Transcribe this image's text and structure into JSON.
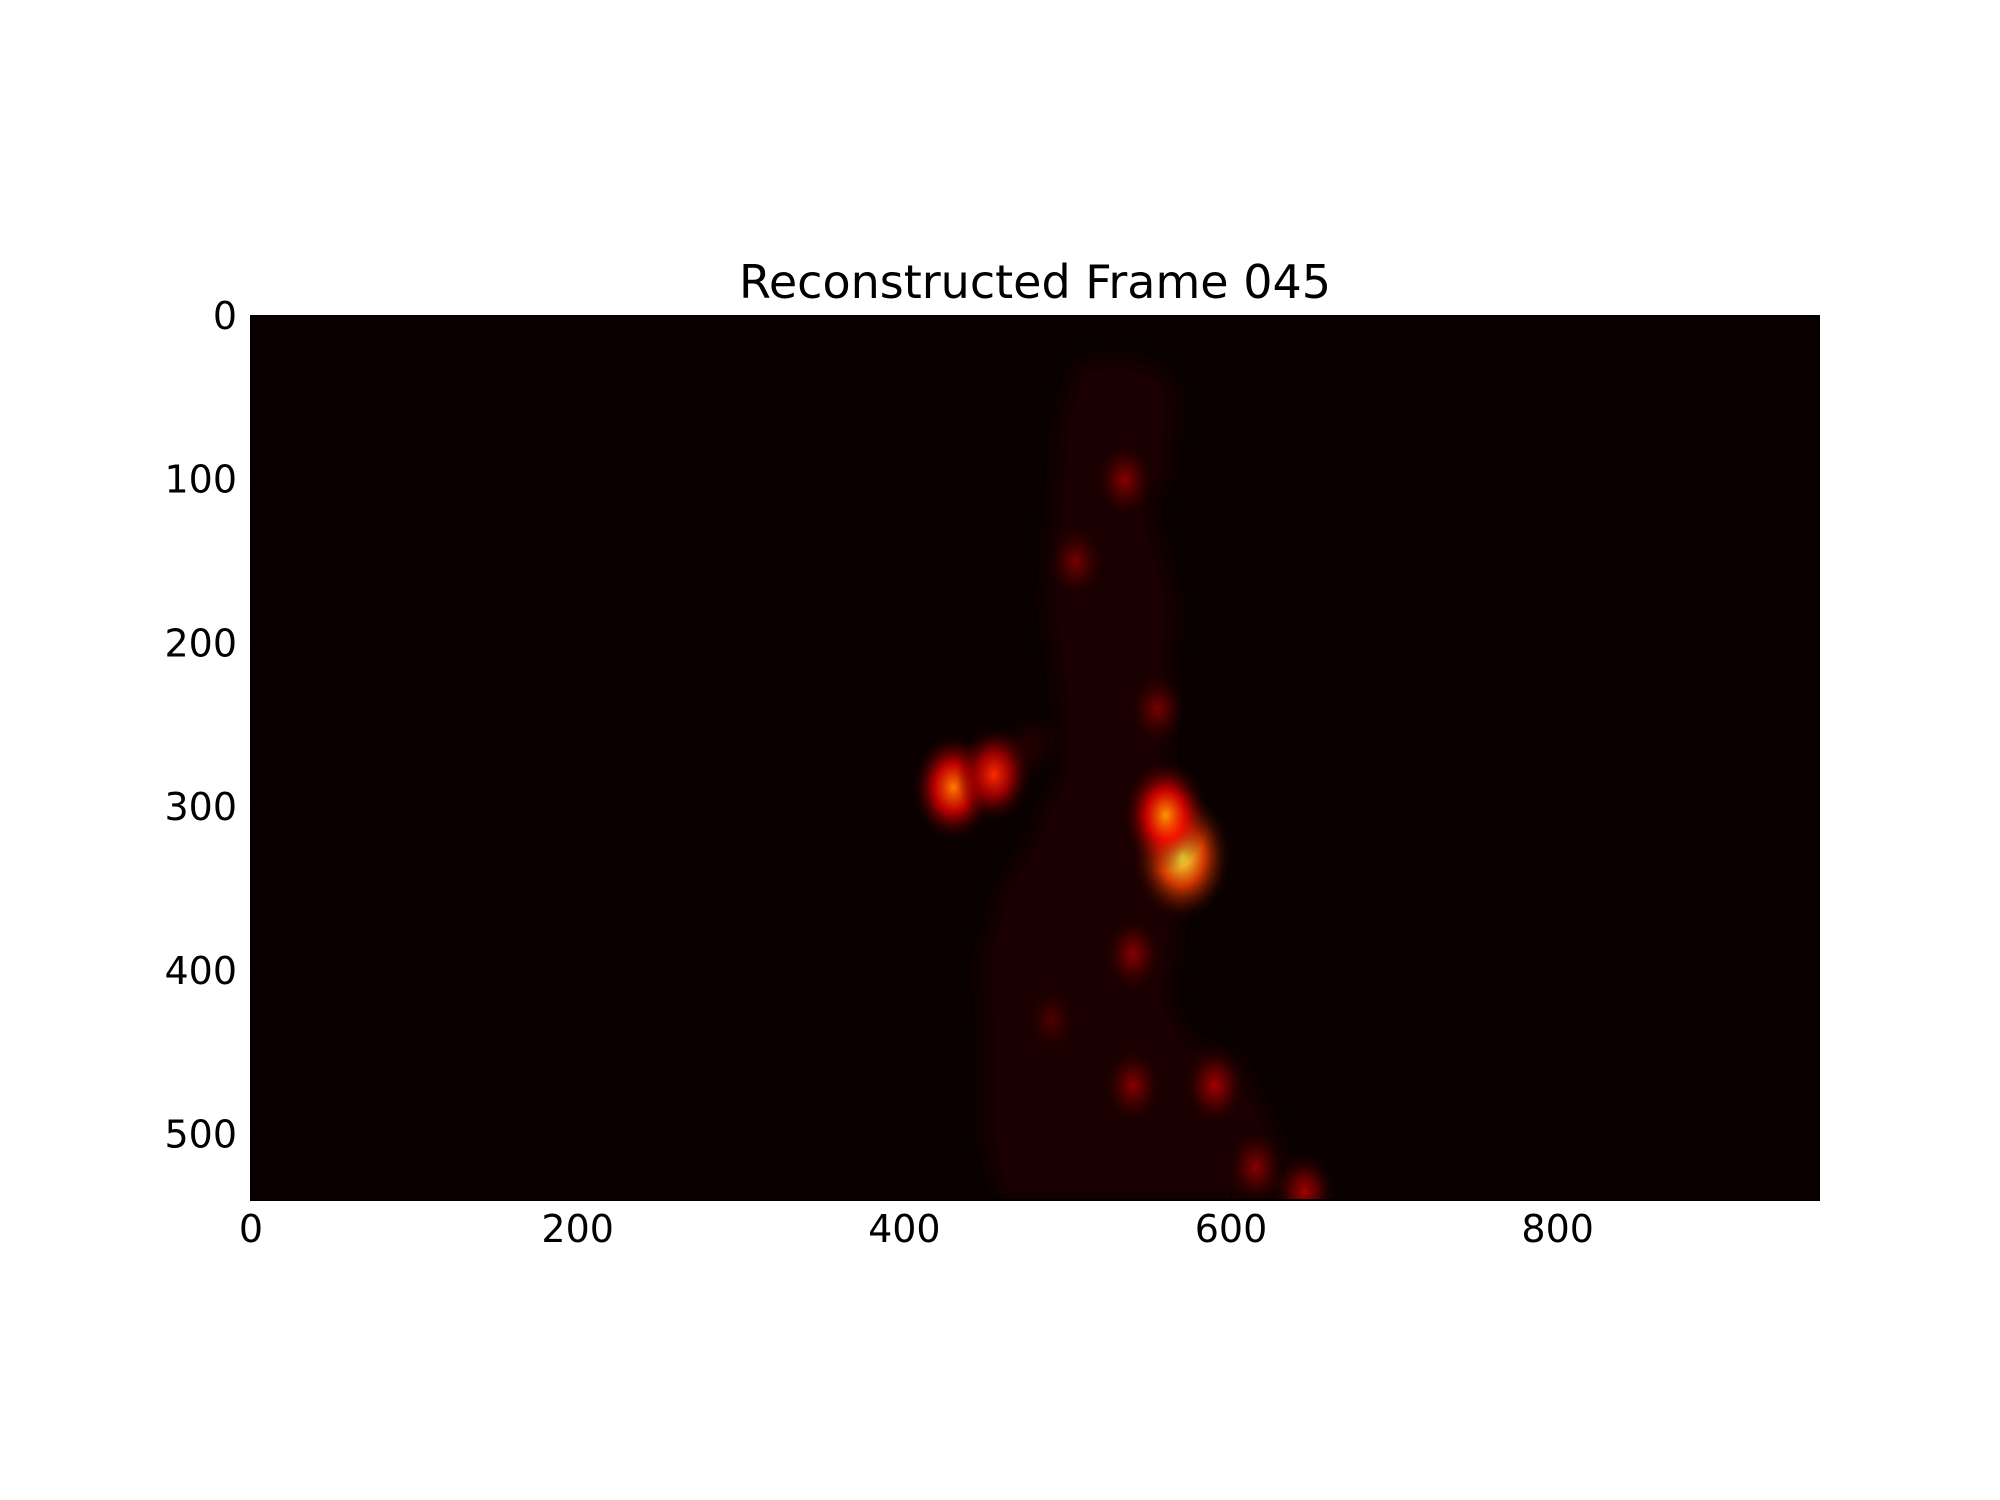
{
  "chart_data": {
    "type": "heatmap",
    "title": "Reconstructed Frame 045",
    "xlabel": "",
    "ylabel": "",
    "xlim": [
      0,
      960
    ],
    "ylim": [
      540,
      0
    ],
    "x_ticks": [
      0,
      200,
      400,
      600,
      800
    ],
    "y_ticks": [
      0,
      100,
      200,
      300,
      400,
      500
    ],
    "colormap": "hot",
    "background_color": "#0a0000",
    "grid": false,
    "content": "dark heat map of a walking human silhouette; brightest regions at the hip (x≈570, y≈330) and the extended hand (x≈430, y≈290)",
    "hotspots": [
      {
        "x": 570,
        "y": 330,
        "intensity": 1.0
      },
      {
        "x": 560,
        "y": 305,
        "intensity": 0.75
      },
      {
        "x": 430,
        "y": 288,
        "intensity": 0.7
      },
      {
        "x": 455,
        "y": 280,
        "intensity": 0.55
      },
      {
        "x": 535,
        "y": 100,
        "intensity": 0.25
      },
      {
        "x": 505,
        "y": 150,
        "intensity": 0.22
      },
      {
        "x": 555,
        "y": 240,
        "intensity": 0.22
      },
      {
        "x": 540,
        "y": 390,
        "intensity": 0.25
      },
      {
        "x": 540,
        "y": 470,
        "intensity": 0.25
      },
      {
        "x": 590,
        "y": 470,
        "intensity": 0.3
      },
      {
        "x": 615,
        "y": 520,
        "intensity": 0.25
      },
      {
        "x": 645,
        "y": 535,
        "intensity": 0.3
      },
      {
        "x": 490,
        "y": 430,
        "intensity": 0.15
      }
    ]
  }
}
